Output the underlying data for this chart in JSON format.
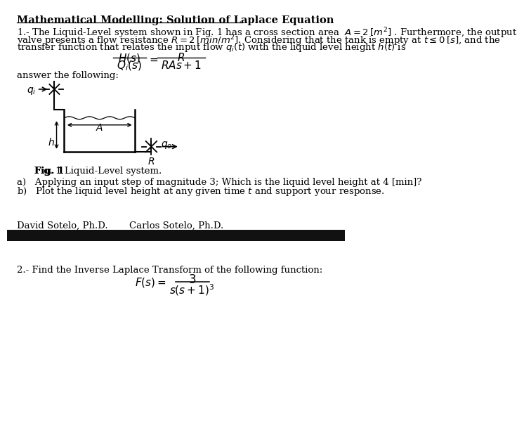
{
  "title": "Mathematical Modelling: Solution of Laplace Equation",
  "bg_color": "#ffffff",
  "black_bar_color": "#111111",
  "text_color": "#000000",
  "para1_line1": "1.- The Liquid-Level system shown in Fig. 1 has a cross section area  $A = 2\\,[m^2]$ . Furthermore, the output",
  "para1_line2": "valve presents a flow resistance $R = 2\\,[min/m^2]$. Considering that the tank is empty at $t \\leq 0\\,[s]$, and the",
  "para1_line3": "transfer function that relates the input flow $q_i(t)$ with the liquid level height $h(t)$ is",
  "answer_label": "answer the following:",
  "fig_caption_bold": "Fig. 1",
  "fig_caption_rest": " Liquid-Level system.",
  "qa_a": "a)   Applying an input step of magnitude 3; Which is the liquid level height at 4 [min]?",
  "qa_b": "b)   Plot the liquid level height at any given time $t$ and support your response.",
  "author1": "David Sotelo, Ph.D.",
  "author2": "Carlos Sotelo, Ph.D.",
  "section2_label": "2.- Find the Inverse Laplace Transform of the following function:"
}
